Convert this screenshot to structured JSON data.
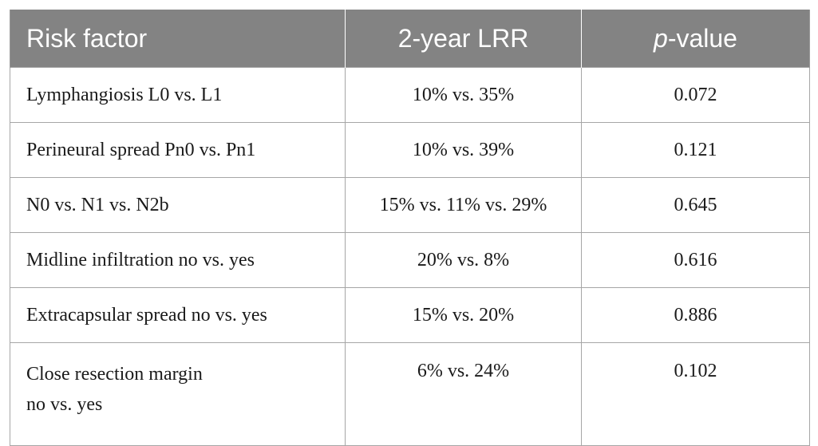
{
  "header": {
    "col1": "Risk factor",
    "col2": "2-year LRR",
    "col3_italic": "p",
    "col3_rest": "-value"
  },
  "rows": [
    {
      "factor": "Lymphangiosis L0 vs. L1",
      "lrr": "10% vs. 35%",
      "p": "0.072"
    },
    {
      "factor": "Perineural spread Pn0 vs. Pn1",
      "lrr": "10% vs. 39%",
      "p": "0.121"
    },
    {
      "factor": "N0 vs. N1 vs. N2b",
      "lrr": "15% vs. 11% vs. 29%",
      "p": "0.645"
    },
    {
      "factor": "Midline infiltration no vs. yes",
      "lrr": "20% vs. 8%",
      "p": "0.616"
    },
    {
      "factor": "Extracapsular spread no vs. yes",
      "lrr": "15% vs. 20%",
      "p": "0.886"
    },
    {
      "factor_line1": "Close resection margin",
      "factor_line2": "no vs. yes",
      "lrr": "6% vs. 24%",
      "p": "0.102"
    }
  ]
}
